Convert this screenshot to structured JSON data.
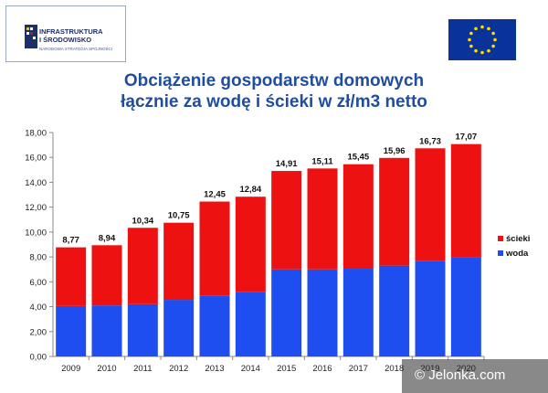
{
  "logo": {
    "line1": "INFRASTRUKTURA",
    "line2": "I ŚRODOWISKO",
    "line3": "NARODOWA STRATEGIA SPÓJNOŚCI"
  },
  "title": {
    "line1": "Obciążenie gospodarstw domowych",
    "line2": "łącznie za wodę i ścieki w zł/m3 netto"
  },
  "watermark": "© Jelonka.com",
  "colors": {
    "woda": "#1f4ef0",
    "scieki": "#ee1111",
    "title": "#1f4e9e"
  },
  "chart_data": {
    "type": "bar",
    "stacked": true,
    "categories": [
      "2009",
      "2010",
      "2011",
      "2012",
      "2013",
      "2014",
      "2015",
      "2016",
      "2017",
      "2018",
      "2019",
      "2020"
    ],
    "series": [
      {
        "name": "woda",
        "color": "#1f4ef0",
        "values": [
          4.05,
          4.1,
          4.2,
          4.55,
          4.9,
          5.2,
          7.0,
          7.0,
          7.05,
          7.3,
          7.7,
          8.0
        ]
      },
      {
        "name": "ścieki",
        "color": "#ee1111",
        "values": [
          4.72,
          4.84,
          6.14,
          6.2,
          7.55,
          7.64,
          7.91,
          8.11,
          8.4,
          8.66,
          9.03,
          9.07
        ]
      }
    ],
    "totals": [
      8.77,
      8.94,
      10.34,
      10.75,
      12.45,
      12.84,
      14.91,
      15.11,
      15.45,
      15.96,
      16.73,
      17.07
    ],
    "total_labels": [
      "8,77",
      "8,94",
      "10,34",
      "10,75",
      "12,45",
      "12,84",
      "14,91",
      "15,11",
      "15,45",
      "15,96",
      "16,73",
      "17,07"
    ],
    "ylim": [
      0,
      18
    ],
    "yticks": [
      "0,00",
      "2,00",
      "4,00",
      "6,00",
      "8,00",
      "10,00",
      "12,00",
      "14,00",
      "16,00",
      "18,00"
    ],
    "legend": {
      "position": "right",
      "entries": [
        "ścieki",
        "woda"
      ]
    },
    "grid": false
  }
}
